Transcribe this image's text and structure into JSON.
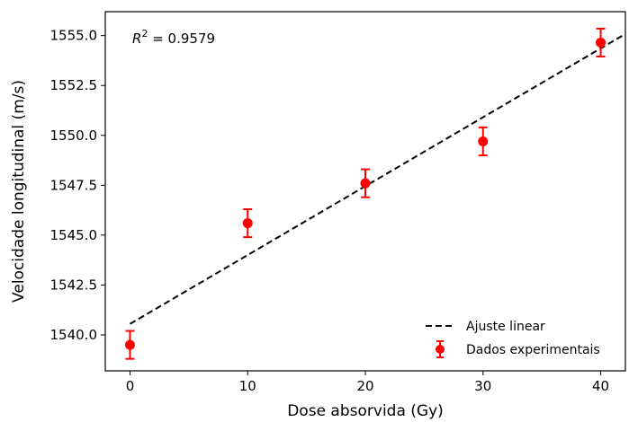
{
  "chart_data": {
    "type": "scatter",
    "xlabel": "Dose absorvida (Gy)",
    "ylabel": "Velocidade longitudinal (m/s)",
    "xlim": [
      -2.1,
      42.1
    ],
    "ylim": [
      1538.2,
      1556.2
    ],
    "xticks": [
      0,
      10,
      20,
      30,
      40
    ],
    "xtick_labels": [
      "0",
      "10",
      "20",
      "30",
      "40"
    ],
    "yticks": [
      1540.0,
      1542.5,
      1545.0,
      1547.5,
      1550.0,
      1552.5,
      1555.0
    ],
    "ytick_labels": [
      "1540.0",
      "1542.5",
      "1545.0",
      "1547.5",
      "1550.0",
      "1552.5",
      "1555.0"
    ],
    "annotation": {
      "symbol": "R",
      "superscript": "2",
      "text": " = 0.9579"
    },
    "series": [
      {
        "name": "Dados experimentais",
        "kind": "errorbar",
        "color": "#ff0000",
        "x": [
          0,
          10,
          20,
          30,
          40
        ],
        "y": [
          1539.5,
          1545.6,
          1547.6,
          1549.7,
          1554.65
        ],
        "yerr": [
          0.7,
          0.7,
          0.7,
          0.7,
          0.7
        ]
      },
      {
        "name": "Ajuste linear",
        "kind": "line",
        "style": "dashed",
        "color": "#000000",
        "x": [
          0,
          42
        ],
        "y": [
          1540.55,
          1555.05
        ]
      }
    ],
    "legend": {
      "placement": "lower-right",
      "entries": [
        {
          "label": "Ajuste linear",
          "series": 1
        },
        {
          "label": "Dados experimentais",
          "series": 0
        }
      ]
    },
    "grid": false
  }
}
